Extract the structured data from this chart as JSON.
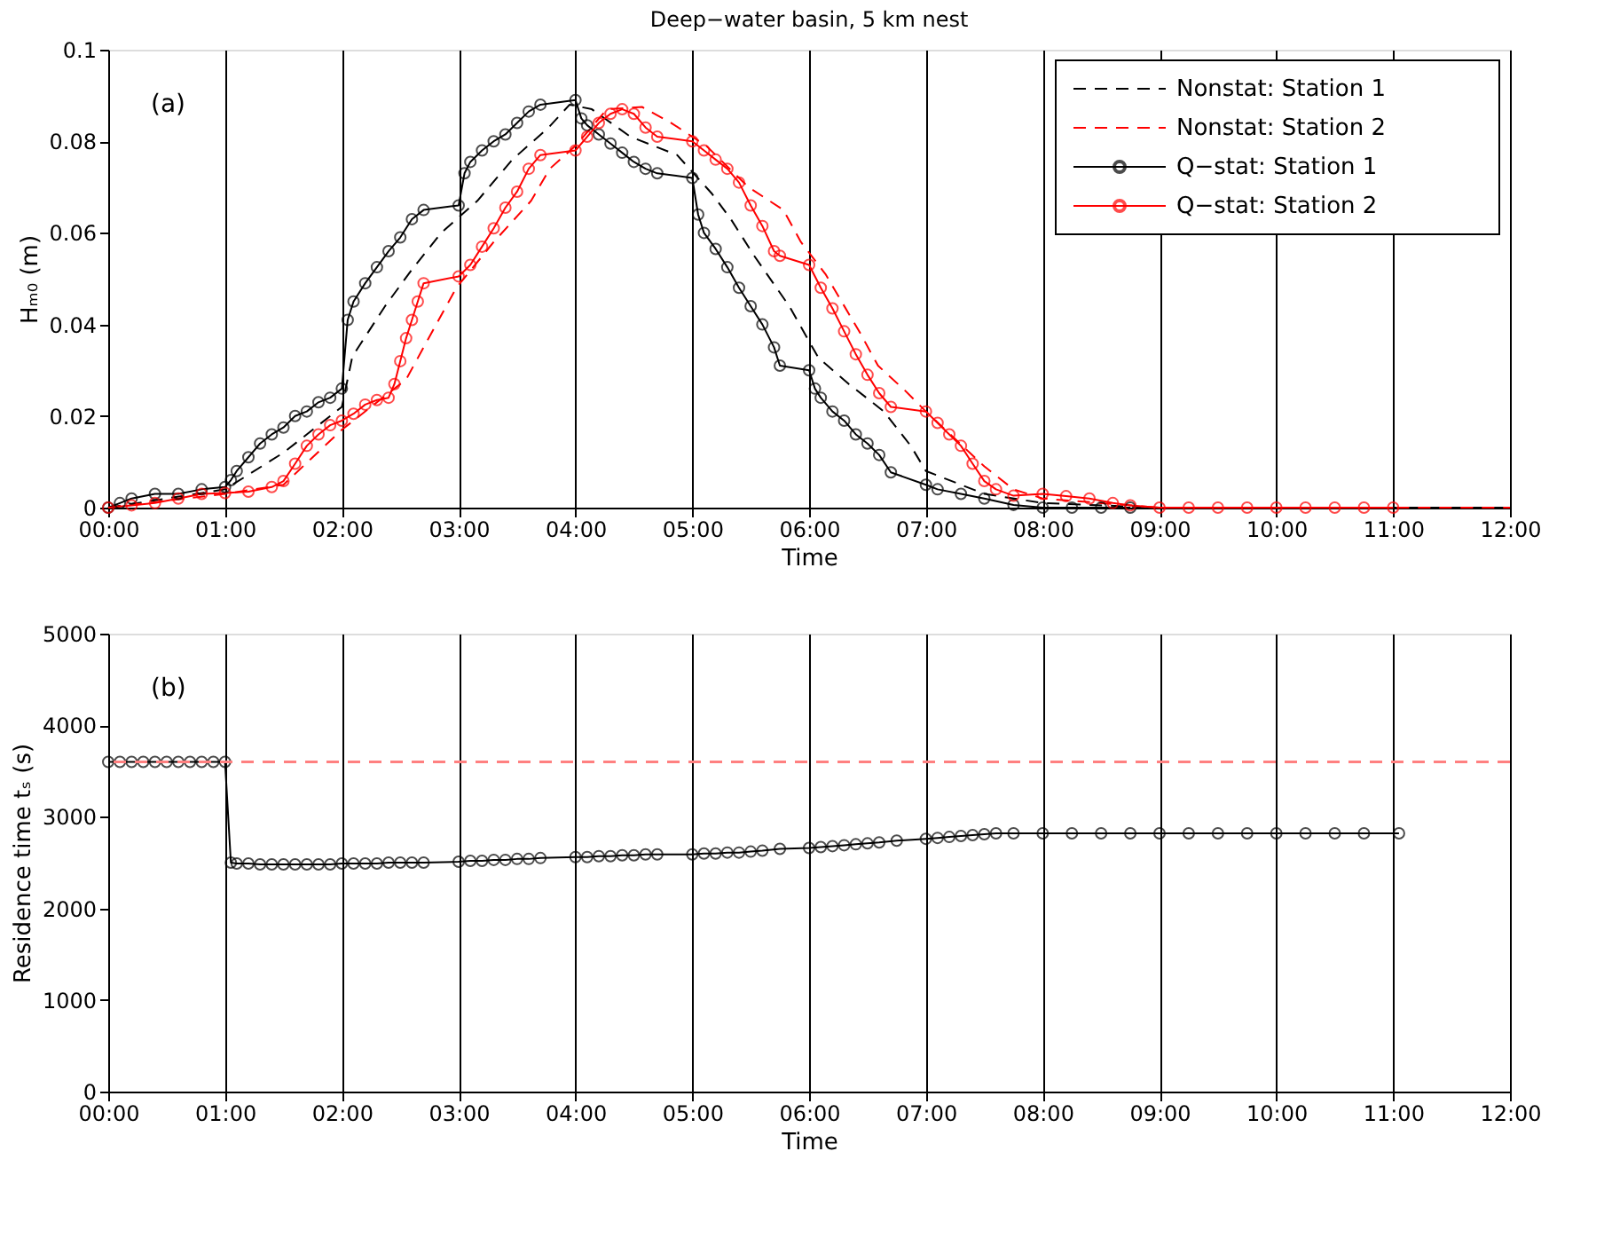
{
  "chart_data": [
    {
      "type": "line",
      "title": "Deep−water basin, 5 km nest",
      "xlabel": "Time",
      "ylabel": "Hₘ₀ (m)",
      "annotations": [
        "(a)"
      ],
      "xlim": [
        0,
        12
      ],
      "ylim": [
        0,
        0.1
      ],
      "xticks": [
        {
          "value": 0,
          "label": "00:00"
        },
        {
          "value": 1,
          "label": "01:00"
        },
        {
          "value": 2,
          "label": "02:00"
        },
        {
          "value": 3,
          "label": "03:00"
        },
        {
          "value": 4,
          "label": "04:00"
        },
        {
          "value": 5,
          "label": "05:00"
        },
        {
          "value": 6,
          "label": "06:00"
        },
        {
          "value": 7,
          "label": "07:00"
        },
        {
          "value": 8,
          "label": "08:00"
        },
        {
          "value": 9,
          "label": "09:00"
        },
        {
          "value": 10,
          "label": "10:00"
        },
        {
          "value": 11,
          "label": "11:00"
        },
        {
          "value": 12,
          "label": "12:00"
        }
      ],
      "yticks": [
        0,
        0.02,
        0.04,
        0.06,
        0.08,
        0.1
      ],
      "grid": "x",
      "legend": "top right",
      "series": [
        {
          "name": "Nonstat: Station 1",
          "color": "#000000",
          "line_style": "dashed",
          "marker": "none",
          "x": [
            0,
            1,
            1.5,
            2,
            2.09,
            2.37,
            2.6,
            2.85,
            3.16,
            3.46,
            3.77,
            3.95,
            4.14,
            4.47,
            4.87,
            5.17,
            5.33,
            5.53,
            5.83,
            6.08,
            6.34,
            6.64,
            6.87,
            7,
            7.5,
            8,
            9,
            12
          ],
          "values": [
            0,
            0.004,
            0.012,
            0.022,
            0.033,
            0.044,
            0.052,
            0.06,
            0.067,
            0.076,
            0.083,
            0.088,
            0.087,
            0.081,
            0.077,
            0.0685,
            0.063,
            0.055,
            0.044,
            0.0327,
            0.027,
            0.021,
            0.0135,
            0.008,
            0.003,
            0.001,
            0,
            0
          ]
        },
        {
          "name": "Nonstat: Station 2",
          "color": "#ff0000",
          "line_style": "dashed",
          "marker": "none",
          "x": [
            0,
            1,
            1.5,
            2,
            2.55,
            2.7,
            2.98,
            3.3,
            3.62,
            3.78,
            4,
            4.27,
            4.57,
            4.82,
            5.12,
            5.48,
            5.78,
            5.93,
            6.14,
            6.44,
            6.59,
            6.82,
            7,
            7.5,
            7.75,
            8,
            9,
            12
          ],
          "values": [
            0,
            0.003,
            0.005,
            0.017,
            0.028,
            0.035,
            0.048,
            0.058,
            0.067,
            0.074,
            0.079,
            0.087,
            0.0875,
            0.084,
            0.079,
            0.07,
            0.065,
            0.058,
            0.051,
            0.038,
            0.031,
            0.0256,
            0.021,
            0.009,
            0.004,
            0.002,
            0,
            0
          ]
        },
        {
          "name": "Q−stat: Station 1",
          "color": "#000000",
          "line_style": "solid",
          "marker": "circle",
          "x": [
            0,
            0.1,
            0.2,
            0.4,
            0.6,
            0.8,
            1,
            1.05,
            1.1,
            1.2,
            1.3,
            1.4,
            1.5,
            1.6,
            1.7,
            1.8,
            1.9,
            2,
            2.05,
            2.1,
            2.2,
            2.3,
            2.4,
            2.5,
            2.6,
            2.7,
            3,
            3.05,
            3.1,
            3.2,
            3.3,
            3.4,
            3.5,
            3.6,
            3.7,
            4,
            4.05,
            4.1,
            4.2,
            4.3,
            4.4,
            4.5,
            4.6,
            4.7,
            5,
            5.05,
            5.1,
            5.2,
            5.3,
            5.4,
            5.5,
            5.6,
            5.7,
            5.75,
            6,
            6.05,
            6.1,
            6.2,
            6.3,
            6.4,
            6.5,
            6.6,
            6.7,
            7,
            7.1,
            7.3,
            7.5,
            7.75,
            8,
            8.25,
            8.5,
            8.75
          ],
          "values": [
            0,
            0.001,
            0.002,
            0.003,
            0.003,
            0.004,
            0.0045,
            0.006,
            0.008,
            0.011,
            0.014,
            0.016,
            0.0175,
            0.02,
            0.021,
            0.023,
            0.024,
            0.026,
            0.041,
            0.045,
            0.049,
            0.0525,
            0.056,
            0.059,
            0.063,
            0.065,
            0.066,
            0.073,
            0.0755,
            0.078,
            0.08,
            0.0815,
            0.084,
            0.0865,
            0.088,
            0.089,
            0.085,
            0.0835,
            0.0815,
            0.0795,
            0.0775,
            0.0755,
            0.074,
            0.073,
            0.072,
            0.064,
            0.06,
            0.0565,
            0.0525,
            0.048,
            0.044,
            0.04,
            0.035,
            0.031,
            0.03,
            0.026,
            0.024,
            0.021,
            0.019,
            0.016,
            0.014,
            0.0115,
            0.0077,
            0.005,
            0.004,
            0.003,
            0.002,
            0.0006,
            0,
            0,
            0,
            0
          ]
        },
        {
          "name": "Q−stat: Station 2",
          "color": "#ff0000",
          "line_style": "solid",
          "marker": "circle",
          "x": [
            0,
            0.2,
            0.4,
            0.6,
            0.8,
            1,
            1.2,
            1.4,
            1.5,
            1.6,
            1.7,
            1.8,
            1.9,
            2,
            2.1,
            2.2,
            2.3,
            2.4,
            2.45,
            2.5,
            2.55,
            2.6,
            2.65,
            2.7,
            3,
            3.1,
            3.2,
            3.3,
            3.4,
            3.5,
            3.6,
            3.7,
            4,
            4.1,
            4.2,
            4.3,
            4.4,
            4.5,
            4.6,
            4.7,
            5,
            5.1,
            5.2,
            5.3,
            5.4,
            5.5,
            5.6,
            5.7,
            5.75,
            6,
            6.1,
            6.2,
            6.3,
            6.4,
            6.5,
            6.6,
            6.7,
            7,
            7.1,
            7.2,
            7.3,
            7.4,
            7.5,
            7.6,
            7.75,
            8,
            8.2,
            8.4,
            8.6,
            8.75,
            9,
            9.25,
            9.5,
            9.75,
            10,
            10.25,
            10.5,
            10.75,
            11
          ],
          "values": [
            0,
            0.0005,
            0.001,
            0.002,
            0.003,
            0.0032,
            0.0035,
            0.0045,
            0.0058,
            0.0096,
            0.0135,
            0.016,
            0.018,
            0.019,
            0.0205,
            0.0225,
            0.0235,
            0.024,
            0.027,
            0.032,
            0.037,
            0.041,
            0.045,
            0.049,
            0.0505,
            0.053,
            0.057,
            0.061,
            0.0655,
            0.069,
            0.074,
            0.077,
            0.078,
            0.081,
            0.084,
            0.086,
            0.087,
            0.086,
            0.083,
            0.081,
            0.08,
            0.078,
            0.076,
            0.074,
            0.071,
            0.066,
            0.0615,
            0.056,
            0.055,
            0.053,
            0.048,
            0.0435,
            0.0385,
            0.0335,
            0.029,
            0.025,
            0.022,
            0.021,
            0.0185,
            0.016,
            0.0135,
            0.0096,
            0.0058,
            0.004,
            0.0026,
            0.003,
            0.0025,
            0.002,
            0.001,
            0.0005,
            0,
            0,
            0,
            0,
            0,
            0,
            0,
            0,
            0
          ]
        }
      ]
    },
    {
      "type": "line",
      "xlabel": "Time",
      "ylabel": "Residence time tₛ (s)",
      "annotations": [
        "(b)"
      ],
      "xlim": [
        0,
        12
      ],
      "ylim": [
        0,
        5000
      ],
      "xticks": [
        {
          "value": 0,
          "label": "00:00"
        },
        {
          "value": 1,
          "label": "01:00"
        },
        {
          "value": 2,
          "label": "02:00"
        },
        {
          "value": 3,
          "label": "03:00"
        },
        {
          "value": 4,
          "label": "04:00"
        },
        {
          "value": 5,
          "label": "05:00"
        },
        {
          "value": 6,
          "label": "06:00"
        },
        {
          "value": 7,
          "label": "07:00"
        },
        {
          "value": 8,
          "label": "08:00"
        },
        {
          "value": 9,
          "label": "09:00"
        },
        {
          "value": 10,
          "label": "10:00"
        },
        {
          "value": 11,
          "label": "11:00"
        },
        {
          "value": 12,
          "label": "12:00"
        }
      ],
      "yticks": [
        0,
        1000,
        2000,
        3000,
        4000,
        5000
      ],
      "grid": "x",
      "ref_lines": [
        {
          "axis": "y",
          "value": 3600,
          "color": "#ff8080",
          "line_style": "dashed"
        }
      ],
      "series": [
        {
          "color": "#000000",
          "line_style": "solid",
          "marker": "circle",
          "x": [
            0,
            0.1,
            0.2,
            0.3,
            0.4,
            0.5,
            0.6,
            0.7,
            0.8,
            0.9,
            1,
            1.05,
            1.1,
            1.2,
            1.3,
            1.4,
            1.5,
            1.6,
            1.7,
            1.8,
            1.9,
            2,
            2.1,
            2.2,
            2.3,
            2.4,
            2.5,
            2.6,
            2.7,
            3,
            3.1,
            3.2,
            3.3,
            3.4,
            3.5,
            3.6,
            3.7,
            4,
            4.1,
            4.2,
            4.3,
            4.4,
            4.5,
            4.6,
            4.7,
            5,
            5.1,
            5.2,
            5.3,
            5.4,
            5.5,
            5.6,
            5.75,
            6,
            6.1,
            6.2,
            6.3,
            6.4,
            6.5,
            6.6,
            6.75,
            7,
            7.1,
            7.2,
            7.3,
            7.4,
            7.5,
            7.6,
            7.75,
            8,
            8.25,
            8.5,
            8.75,
            9,
            9.25,
            9.5,
            9.75,
            10,
            10.25,
            10.5,
            10.75,
            11.05
          ],
          "values": [
            3600,
            3600,
            3600,
            3600,
            3600,
            3600,
            3600,
            3600,
            3600,
            3600,
            3600,
            2500,
            2490,
            2490,
            2480,
            2480,
            2480,
            2480,
            2480,
            2480,
            2480,
            2490,
            2490,
            2490,
            2490,
            2500,
            2500,
            2500,
            2500,
            2510,
            2520,
            2520,
            2530,
            2530,
            2540,
            2540,
            2550,
            2560,
            2560,
            2570,
            2570,
            2580,
            2580,
            2590,
            2590,
            2590,
            2600,
            2600,
            2610,
            2610,
            2620,
            2630,
            2650,
            2660,
            2670,
            2680,
            2690,
            2700,
            2710,
            2720,
            2740,
            2760,
            2770,
            2780,
            2790,
            2800,
            2810,
            2820,
            2820,
            2820,
            2820,
            2820,
            2820,
            2820,
            2820,
            2820,
            2820,
            2820,
            2820,
            2820,
            2820,
            2820
          ]
        }
      ]
    }
  ]
}
